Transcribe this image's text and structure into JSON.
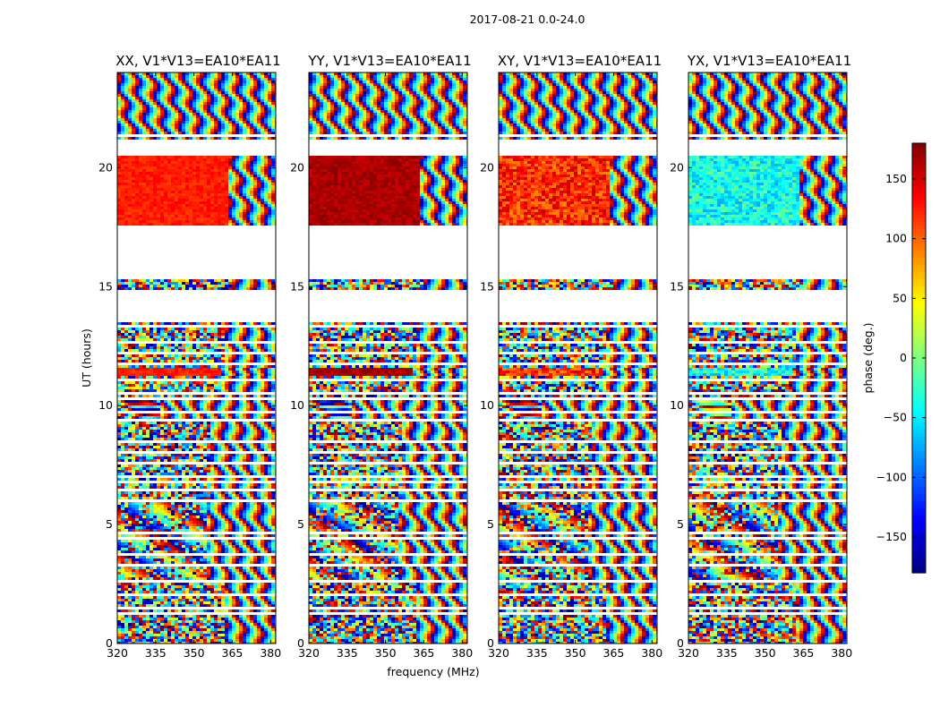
{
  "figure": {
    "suptitle": "2017-08-21 0.0-24.0"
  },
  "chart_data": {
    "type": "heatmap",
    "x_label": "frequency (MHz)",
    "y_label": "UT (hours)",
    "xlim": [
      320,
      382
    ],
    "ylim": [
      0,
      24
    ],
    "x_ticks": [
      320,
      335,
      350,
      365,
      380
    ],
    "y_ticks": [
      0,
      5,
      10,
      15,
      20
    ],
    "panels": [
      {
        "title": "XX, V1*V13=EA10*EA11"
      },
      {
        "title": "YY, V1*V13=EA10*EA11"
      },
      {
        "title": "XY, V1*V13=EA10*EA11"
      },
      {
        "title": "YX, V1*V13=EA10*EA11"
      }
    ],
    "colorbar": {
      "label": "phase (deg.)",
      "range": [
        -180,
        180
      ],
      "ticks": [
        150,
        100,
        50,
        0,
        -50,
        -100,
        -150
      ],
      "tick_labels": [
        "150",
        "100",
        "50",
        "0",
        "−50",
        "−100",
        "−150"
      ],
      "colormap": "jet"
    },
    "data_gaps_hours": [
      [
        1.2,
        1.35
      ],
      [
        1.45,
        1.55
      ],
      [
        2.0,
        2.15
      ],
      [
        2.6,
        2.7
      ],
      [
        3.2,
        3.3
      ],
      [
        3.7,
        3.8
      ],
      [
        4.35,
        4.5
      ],
      [
        4.55,
        4.65
      ],
      [
        5.9,
        6.05
      ],
      [
        6.45,
        6.55
      ],
      [
        6.7,
        6.8
      ],
      [
        7.0,
        7.12
      ],
      [
        7.5,
        7.6
      ],
      [
        8.0,
        8.12
      ],
      [
        8.4,
        8.5
      ],
      [
        8.6,
        8.7
      ],
      [
        9.3,
        9.4
      ],
      [
        9.7,
        9.8
      ],
      [
        10.25,
        10.35
      ],
      [
        10.5,
        10.6
      ],
      [
        11.05,
        11.15
      ],
      [
        11.75,
        11.85
      ],
      [
        12.2,
        12.3
      ],
      [
        12.6,
        12.7
      ],
      [
        13.3,
        13.4
      ],
      [
        13.5,
        14.9
      ],
      [
        15.35,
        15.5
      ],
      [
        15.7,
        15.82
      ],
      [
        16.25,
        16.35
      ],
      [
        16.5,
        17.0
      ],
      [
        17.2,
        17.35
      ],
      [
        17.5,
        17.6
      ],
      [
        20.6,
        20.75
      ],
      [
        20.9,
        21.2
      ],
      [
        21.3,
        21.4
      ]
    ],
    "segments_hours": [
      {
        "from": 0.0,
        "to": 2.6,
        "pattern": "noise",
        "fringe_from_mhz": 362
      },
      {
        "from": 2.6,
        "to": 5.9,
        "pattern": "mixed",
        "fringe_from_mhz": 355
      },
      {
        "from": 5.9,
        "to": 9.3,
        "pattern": "noise",
        "fringe_from_mhz": 356
      },
      {
        "from": 9.3,
        "to": 10.3,
        "pattern": "fringes",
        "fringe_from_mhz": 336
      },
      {
        "from": 10.3,
        "to": 11.2,
        "pattern": "noise",
        "fringe_from_mhz": 358
      },
      {
        "from": 11.2,
        "to": 11.6,
        "pattern": "uniform",
        "fringe_from_mhz": 360
      },
      {
        "from": 11.6,
        "to": 13.5,
        "pattern": "noise",
        "fringe_from_mhz": 362
      },
      {
        "from": 14.9,
        "to": 15.35,
        "pattern": "noise",
        "fringe_from_mhz": 364
      },
      {
        "from": 17.6,
        "to": 20.55,
        "pattern": "uniform",
        "fringe_from_mhz": 363
      },
      {
        "from": 21.2,
        "to": 24.0,
        "pattern": "fringes",
        "fringe_from_mhz": 320
      }
    ],
    "panel_base_phase_deg": [
      125,
      165,
      120,
      -40
    ]
  }
}
